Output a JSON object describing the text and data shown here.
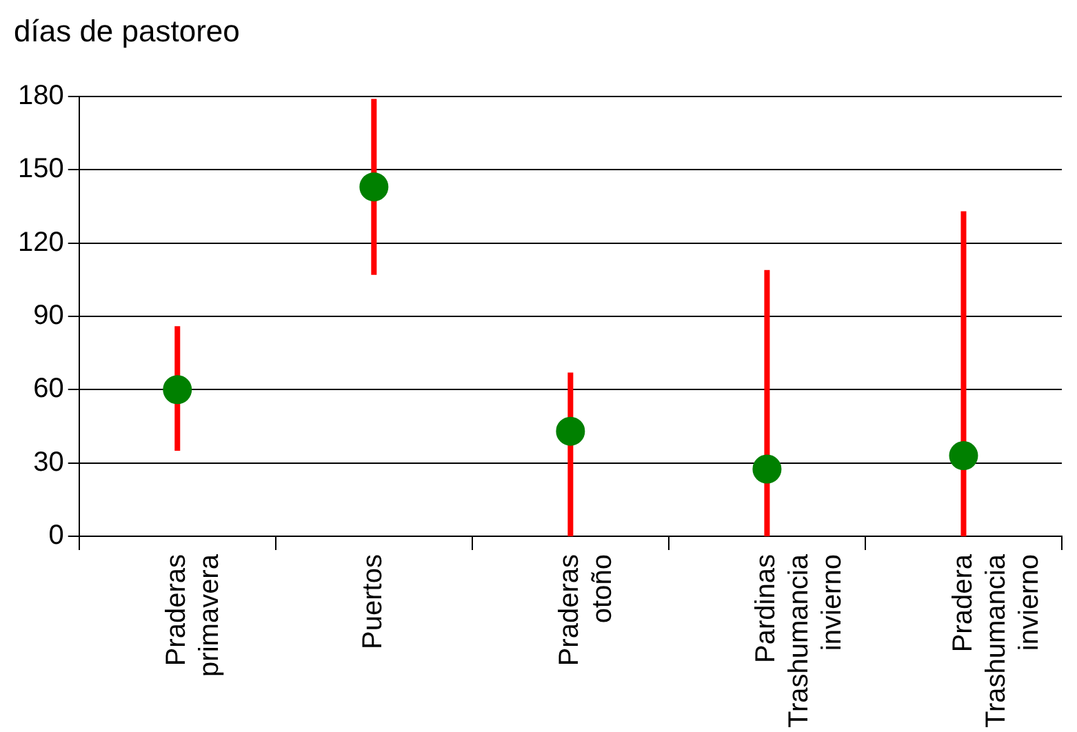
{
  "chart_data": {
    "type": "scatter",
    "ylabel": "días de pastoreo",
    "categories": [
      "Praderas primavera",
      "Puertos",
      "Praderas otoño",
      "Pardinas Trashumancia invierno",
      "Pradera Trashumancia invierno"
    ],
    "series": [
      {
        "color": "#008000",
        "values": [
          60,
          143,
          43,
          27.5,
          33
        ],
        "errors": [
          [
            35,
            86
          ],
          [
            107,
            179
          ],
          [
            0,
            67
          ],
          [
            0,
            109
          ],
          [
            0,
            133
          ]
        ]
      }
    ],
    "ylim": [
      0,
      180
    ],
    "yticks": [
      0,
      30,
      60,
      90,
      120,
      150,
      180
    ],
    "grid": "y",
    "marker": "circle",
    "legend": false
  }
}
